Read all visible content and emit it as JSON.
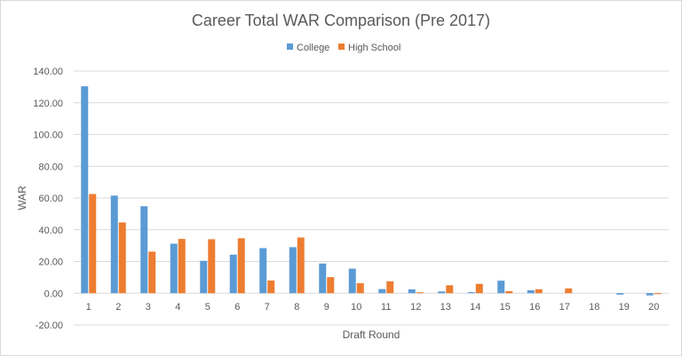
{
  "chart_data": {
    "type": "bar",
    "title": "Career Total WAR Comparison (Pre 2017)",
    "xlabel": "Draft Round",
    "ylabel": "WAR",
    "ylim": [
      -20,
      140
    ],
    "ytick_step": 20,
    "ytick_labels": [
      "-20.00",
      "0.00",
      "20.00",
      "40.00",
      "60.00",
      "80.00",
      "100.00",
      "120.00",
      "140.00"
    ],
    "grid": true,
    "legend_position": "top",
    "categories": [
      "1",
      "2",
      "3",
      "4",
      "5",
      "6",
      "7",
      "8",
      "9",
      "10",
      "11",
      "12",
      "13",
      "14",
      "15",
      "16",
      "17",
      "18",
      "19",
      "20"
    ],
    "series": [
      {
        "name": "College",
        "color": "#5b9bd5",
        "values": [
          130.4,
          61.5,
          54.8,
          31.2,
          20.4,
          24.3,
          28.4,
          29.0,
          18.7,
          15.5,
          2.6,
          2.4,
          1.1,
          0.6,
          7.9,
          1.8,
          0.0,
          0.0,
          -0.9,
          -1.4
        ]
      },
      {
        "name": "High School",
        "color": "#ed7d31",
        "values": [
          62.5,
          44.6,
          26.2,
          34.2,
          34.0,
          34.6,
          8.0,
          35.1,
          10.1,
          6.3,
          7.5,
          0.6,
          5.0,
          5.9,
          1.3,
          2.5,
          3.0,
          0.0,
          0.0,
          -0.6
        ]
      }
    ]
  }
}
